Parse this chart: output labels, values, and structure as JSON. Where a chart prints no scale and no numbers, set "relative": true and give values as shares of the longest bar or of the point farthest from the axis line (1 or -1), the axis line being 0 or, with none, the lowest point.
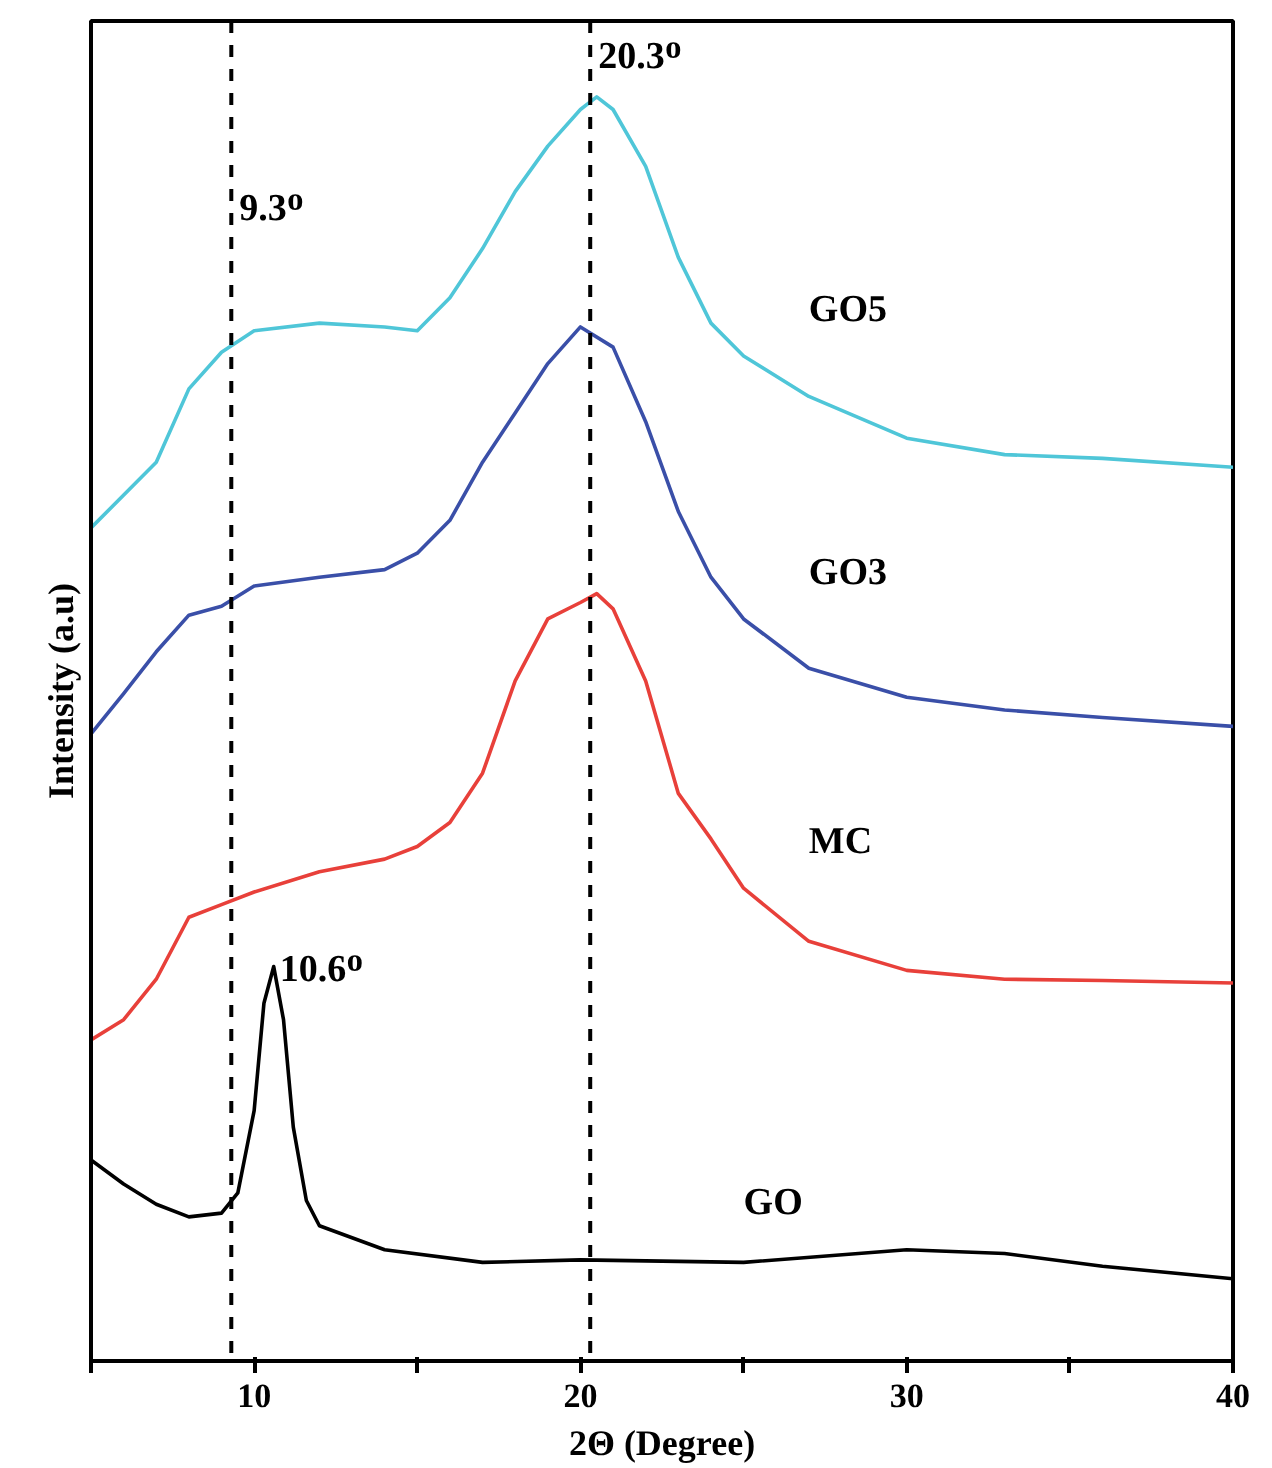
{
  "chart_data": {
    "type": "line",
    "relative": true,
    "xlabel": "2Θ (Degree)",
    "ylabel": "Intensity (a.u)",
    "xlim": [
      5,
      40
    ],
    "xticks": [
      {
        "value": 5,
        "label": null
      },
      10,
      {
        "value": 15,
        "label": null
      },
      20,
      {
        "value": 25,
        "label": null
      },
      30,
      {
        "value": 35,
        "label": null
      },
      40
    ],
    "series": [
      {
        "name": "GO5",
        "color": "#4fc6d8",
        "x": [
          5,
          7,
          8,
          9,
          10,
          12,
          14,
          15,
          16,
          17,
          18,
          19,
          20,
          20.5,
          21,
          22,
          23,
          24,
          25,
          27,
          30,
          33,
          36,
          40
        ],
        "values": [
          0.659,
          0.711,
          0.769,
          0.798,
          0.815,
          0.821,
          0.818,
          0.815,
          0.841,
          0.88,
          0.925,
          0.961,
          0.99,
          1.0,
          0.99,
          0.945,
          0.873,
          0.821,
          0.795,
          0.763,
          0.73,
          0.717,
          0.714,
          0.707
        ]
      },
      {
        "name": "GO3",
        "color": "#3a4fa8",
        "x": [
          5,
          6,
          7,
          8,
          9,
          10,
          12,
          14,
          15,
          16,
          17,
          18,
          19,
          20,
          21,
          22,
          23,
          24,
          25,
          27,
          30,
          33,
          36,
          40
        ],
        "values": [
          0.496,
          0.528,
          0.561,
          0.59,
          0.597,
          0.613,
          0.62,
          0.626,
          0.639,
          0.665,
          0.711,
          0.75,
          0.789,
          0.818,
          0.802,
          0.743,
          0.672,
          0.62,
          0.587,
          0.548,
          0.525,
          0.515,
          0.509,
          0.502
        ]
      },
      {
        "name": "MC",
        "color": "#e8403a",
        "x": [
          5,
          6,
          7,
          8,
          9,
          10,
          12,
          14,
          15,
          16,
          17,
          18,
          19,
          20,
          20.5,
          21,
          22,
          23,
          24,
          25,
          27,
          30,
          33,
          36,
          40
        ],
        "values": [
          0.254,
          0.27,
          0.302,
          0.351,
          0.361,
          0.371,
          0.387,
          0.397,
          0.407,
          0.426,
          0.465,
          0.538,
          0.587,
          0.6,
          0.607,
          0.595,
          0.538,
          0.449,
          0.413,
          0.374,
          0.332,
          0.309,
          0.302,
          0.301,
          0.299
        ]
      },
      {
        "name": "GO",
        "color": "#000000",
        "x": [
          5,
          6,
          7,
          8,
          9,
          9.5,
          10,
          10.3,
          10.6,
          10.9,
          11.2,
          11.6,
          12,
          14,
          17,
          20,
          25,
          30,
          33,
          36,
          40
        ],
        "values": [
          0.159,
          0.14,
          0.124,
          0.114,
          0.117,
          0.133,
          0.198,
          0.283,
          0.312,
          0.27,
          0.185,
          0.127,
          0.107,
          0.088,
          0.078,
          0.08,
          0.078,
          0.088,
          0.085,
          0.075,
          0.065
        ]
      }
    ],
    "ref_lines": [
      {
        "axis": "x",
        "value": 9.3,
        "label": "9.3ᴼ",
        "color": "#000000",
        "line_style": "dashed"
      },
      {
        "axis": "x",
        "value": 20.3,
        "label": "20.3ᴼ",
        "color": "#000000",
        "line_style": "dashed"
      }
    ],
    "annotations": [
      {
        "text": "10.6ᴼ",
        "x": 10.6,
        "y": 0.312
      }
    ]
  }
}
